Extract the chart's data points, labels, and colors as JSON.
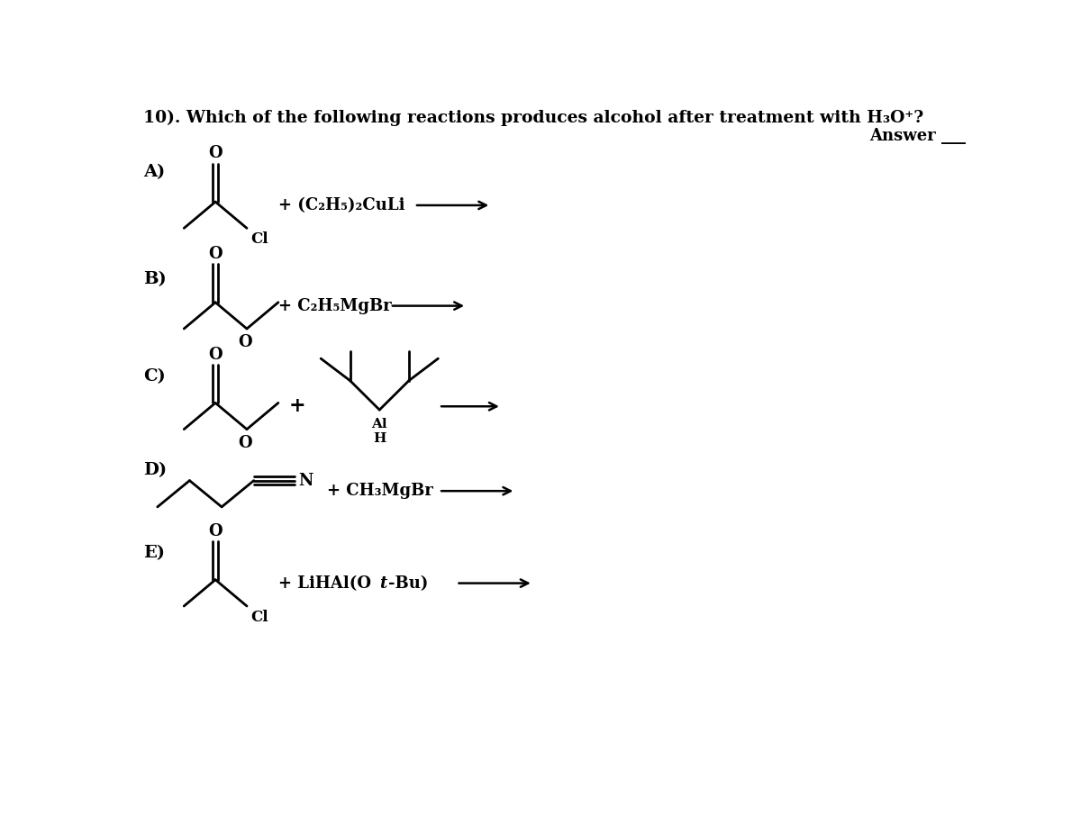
{
  "background_color": "#ffffff",
  "text_color": "#000000",
  "fig_width": 12.0,
  "fig_height": 9.05,
  "title_main": "10). Which of the following reactions produces alcohol after treatment with H",
  "title_suffix": "O",
  "answer_label": "Answer ___",
  "lw": 2.0
}
